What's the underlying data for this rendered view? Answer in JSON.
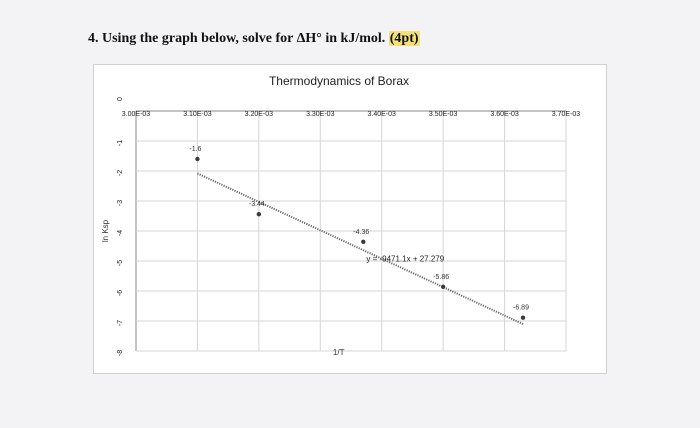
{
  "question": {
    "number": "4.",
    "text": "Using the graph below, solve for ΔH° in kJ/mol.",
    "points": "(4pt)"
  },
  "chart_data": {
    "type": "scatter",
    "title": "Thermodynamics of Borax",
    "xlabel": "1/T",
    "ylabel": "ln Ksp",
    "x_ticks": [
      "3.00E-03",
      "3.10E-03",
      "3.20E-03",
      "3.30E-03",
      "3.40E-03",
      "3.50E-03",
      "3.60E-03",
      "3.70E-03"
    ],
    "x_tick_values": [
      0.003,
      0.0031,
      0.0032,
      0.0033,
      0.0034,
      0.0035,
      0.0036,
      0.0037
    ],
    "y_ticks": [
      "0",
      "-1",
      "-2",
      "-3",
      "-4",
      "-5",
      "-6",
      "-7",
      "-8"
    ],
    "xlim": [
      0.003,
      0.0037
    ],
    "ylim": [
      -8,
      0
    ],
    "x_axis_position": "top",
    "grid": true,
    "series": [
      {
        "points": [
          {
            "x": 0.0031,
            "y": -1.6,
            "label": "-1.6"
          },
          {
            "x": 0.0032,
            "y": -3.44,
            "label": "-3.44"
          },
          {
            "x": 0.00337,
            "y": -4.36,
            "label": "-4.36"
          },
          {
            "x": 0.0035,
            "y": -5.86,
            "label": "-5.86"
          },
          {
            "x": 0.00363,
            "y": -6.89,
            "label": "-6.89"
          }
        ]
      }
    ],
    "trendline": {
      "equation": "y = -9471.1x + 27.279",
      "slope": -9471.1,
      "intercept": 27.279,
      "x_range": [
        0.0031,
        0.00363
      ],
      "style": "dotted"
    },
    "colors": {
      "point": "#3a3a3a",
      "trendline": "#6a6a6a",
      "grid": "#d6d6d6"
    }
  }
}
